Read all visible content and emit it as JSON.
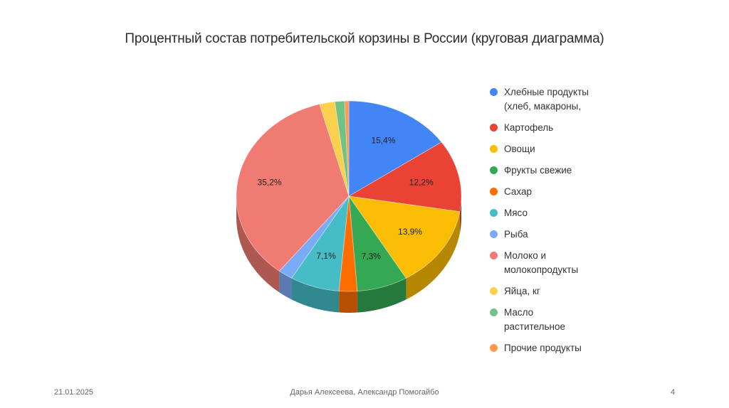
{
  "chart_data": {
    "type": "pie",
    "title": "Процентный состав потребительской корзины в России (круговая диаграмма)",
    "legend_position": "right",
    "slices": [
      {
        "label": "Хлебные продукты (хлеб, макароны,",
        "value": 15.4,
        "data_label": "15,4%",
        "color": "#4285f4"
      },
      {
        "label": "Картофель",
        "value": 12.2,
        "data_label": "12,2%",
        "color": "#ea4335"
      },
      {
        "label": "Овощи",
        "value": 13.9,
        "data_label": "13,9%",
        "color": "#fbbc04"
      },
      {
        "label": "Фрукты свежие",
        "value": 7.3,
        "data_label": "7,3%",
        "color": "#34a853"
      },
      {
        "label": "Сахар",
        "value": 2.6,
        "data_label": "",
        "color": "#ff6d01"
      },
      {
        "label": "Мясо",
        "value": 7.1,
        "data_label": "7,1%",
        "color": "#46bdc6"
      },
      {
        "label": "Рыба",
        "value": 2.1,
        "data_label": "",
        "color": "#7baaf7"
      },
      {
        "label": "Молоко и молокопродукты",
        "value": 35.2,
        "data_label": "35,2%",
        "color": "#f07b72"
      },
      {
        "label": "Яйца, кг",
        "value": 2.2,
        "data_label": "",
        "color": "#fcd04f"
      },
      {
        "label": "Масло растительное",
        "value": 1.4,
        "data_label": "",
        "color": "#71c287"
      },
      {
        "label": "Прочие продукты",
        "value": 0.6,
        "data_label": "",
        "color": "#ff994d"
      }
    ]
  },
  "footer": {
    "date": "21.01.2025",
    "authors": "Дарья Алексеева, Александр Помогайбо",
    "page": "4"
  }
}
